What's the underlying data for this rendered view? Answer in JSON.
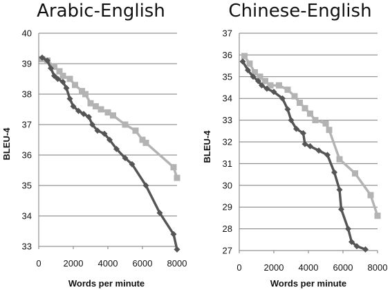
{
  "chart_data": [
    {
      "type": "line",
      "title": "Arabic-English",
      "xlabel": "Words per minute",
      "ylabel": "BLEU-4",
      "xlim": [
        0,
        8000
      ],
      "ylim": [
        33,
        40
      ],
      "xticks": [
        "0",
        "2000",
        "4000",
        "6000",
        "8000"
      ],
      "yticks": [
        "33",
        "34",
        "35",
        "36",
        "37",
        "38",
        "39",
        "40"
      ],
      "grid": true,
      "series": [
        {
          "color": "#555555",
          "marker": "diamond",
          "points": [
            [
              200,
              39.2
            ],
            [
              500,
              39.1
            ],
            [
              700,
              38.85
            ],
            [
              900,
              38.6
            ],
            [
              1100,
              38.5
            ],
            [
              1400,
              38.4
            ],
            [
              1600,
              38.2
            ],
            [
              1800,
              37.85
            ],
            [
              2000,
              37.6
            ],
            [
              2300,
              37.45
            ],
            [
              2600,
              37.35
            ],
            [
              2900,
              37.25
            ],
            [
              3100,
              37.0
            ],
            [
              3400,
              36.8
            ],
            [
              3800,
              36.7
            ],
            [
              4100,
              36.5
            ],
            [
              4500,
              36.2
            ],
            [
              5000,
              35.9
            ],
            [
              5400,
              35.7
            ],
            [
              6200,
              35.0
            ],
            [
              7000,
              34.1
            ],
            [
              7800,
              33.4
            ],
            [
              8000,
              32.9
            ]
          ]
        },
        {
          "color": "#b3b3b3",
          "marker": "square",
          "points": [
            [
              200,
              39.15
            ],
            [
              500,
              39.1
            ],
            [
              900,
              38.9
            ],
            [
              1200,
              38.75
            ],
            [
              1400,
              38.6
            ],
            [
              1800,
              38.5
            ],
            [
              2100,
              38.3
            ],
            [
              2500,
              38.1
            ],
            [
              2700,
              38.0
            ],
            [
              3000,
              37.7
            ],
            [
              3300,
              37.6
            ],
            [
              3600,
              37.5
            ],
            [
              4000,
              37.4
            ],
            [
              4300,
              37.3
            ],
            [
              5000,
              37.0
            ],
            [
              5600,
              36.8
            ],
            [
              6000,
              36.5
            ],
            [
              6200,
              36.4
            ],
            [
              7800,
              35.6
            ],
            [
              8000,
              35.25
            ]
          ]
        }
      ]
    },
    {
      "type": "line",
      "title": "Chinese-English",
      "xlabel": "Words per minute",
      "ylabel": "BLEU-4",
      "xlim": [
        0,
        8000
      ],
      "ylim": [
        27,
        37
      ],
      "xticks": [
        "0",
        "2000",
        "4000",
        "6000",
        "8000"
      ],
      "yticks": [
        "27",
        "28",
        "29",
        "30",
        "31",
        "32",
        "33",
        "34",
        "35",
        "36",
        "37"
      ],
      "grid": true,
      "series": [
        {
          "color": "#555555",
          "marker": "diamond",
          "points": [
            [
              200,
              35.7
            ],
            [
              500,
              35.3
            ],
            [
              800,
              35.0
            ],
            [
              1100,
              34.8
            ],
            [
              1300,
              34.6
            ],
            [
              1600,
              34.45
            ],
            [
              2000,
              34.3
            ],
            [
              2500,
              34.0
            ],
            [
              2800,
              33.5
            ],
            [
              3000,
              33.0
            ],
            [
              3300,
              32.6
            ],
            [
              3700,
              32.4
            ],
            [
              3800,
              31.9
            ],
            [
              4100,
              31.8
            ],
            [
              4600,
              31.6
            ],
            [
              5100,
              31.4
            ],
            [
              5500,
              30.6
            ],
            [
              5800,
              29.8
            ],
            [
              5900,
              28.9
            ],
            [
              6300,
              28.0
            ],
            [
              6500,
              27.4
            ],
            [
              6800,
              27.2
            ],
            [
              7300,
              27.05
            ]
          ]
        },
        {
          "color": "#b3b3b3",
          "marker": "square",
          "points": [
            [
              300,
              35.95
            ],
            [
              600,
              35.6
            ],
            [
              900,
              35.2
            ],
            [
              1200,
              35.0
            ],
            [
              1500,
              34.8
            ],
            [
              1800,
              34.6
            ],
            [
              2300,
              34.6
            ],
            [
              2800,
              34.4
            ],
            [
              3200,
              34.1
            ],
            [
              3500,
              33.8
            ],
            [
              3800,
              33.55
            ],
            [
              4100,
              33.3
            ],
            [
              4400,
              33.0
            ],
            [
              5000,
              32.85
            ],
            [
              5200,
              32.55
            ],
            [
              5800,
              31.2
            ],
            [
              6700,
              30.55
            ],
            [
              7600,
              29.55
            ],
            [
              8000,
              28.6
            ]
          ]
        }
      ]
    }
  ]
}
